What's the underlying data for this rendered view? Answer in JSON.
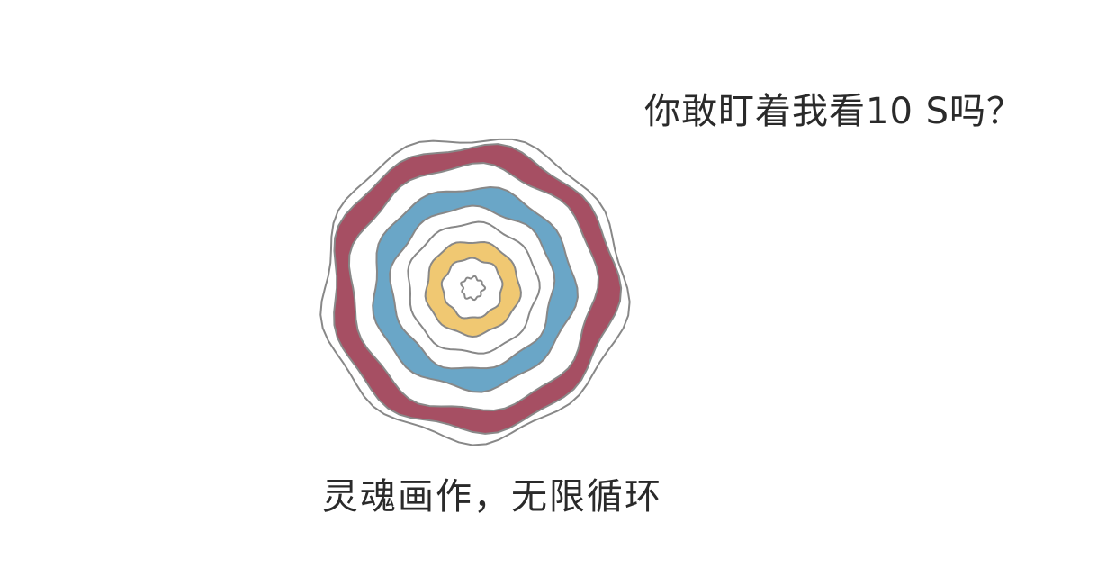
{
  "headline": "你敢盯着我看10 S吗？",
  "caption": "灵魂画作，无限循环",
  "rings": {
    "outline": "#888888",
    "colors": {
      "red": "#a64f63",
      "blue": "#6aa6c7",
      "yellow": "#f0c872",
      "white": "#ffffff"
    }
  }
}
